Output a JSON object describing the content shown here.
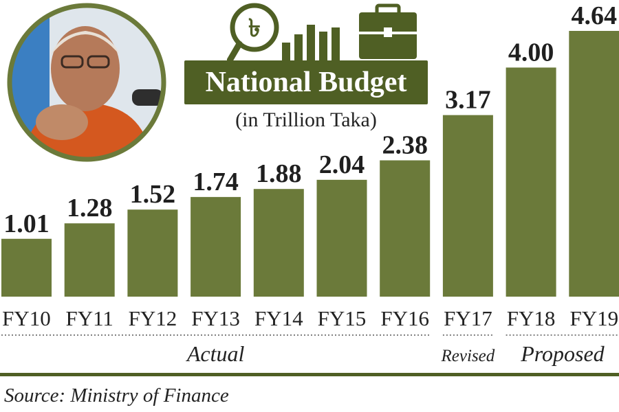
{
  "title": "National Budget",
  "subtitle": "(in Trillion Taka)",
  "source": "Source: Ministry of Finance",
  "colors": {
    "bar": "#6b7a3a",
    "accent": "#4f5f24"
  },
  "icons": [
    "taka-icon",
    "magnifier-icon",
    "bar-chart-icon",
    "briefcase-icon",
    "portrait-photo"
  ],
  "chart_data": {
    "type": "bar",
    "title": "National Budget",
    "subtitle": "(in Trillion Taka)",
    "categories": [
      "FY10",
      "FY11",
      "FY12",
      "FY13",
      "FY14",
      "FY15",
      "FY16",
      "FY17",
      "FY18",
      "FY19"
    ],
    "values": [
      1.01,
      1.28,
      1.52,
      1.74,
      1.88,
      2.04,
      2.38,
      3.17,
      4.0,
      4.64
    ],
    "value_labels": [
      "1.01",
      "1.28",
      "1.52",
      "1.74",
      "1.88",
      "2.04",
      "2.38",
      "3.17",
      "4.00",
      "4.64"
    ],
    "groups": [
      {
        "label": "Actual",
        "from": 0,
        "to": 6
      },
      {
        "label": "Revised",
        "from": 7,
        "to": 7
      },
      {
        "label": "Proposed",
        "from": 8,
        "to": 9
      }
    ],
    "ylim": [
      0,
      5
    ],
    "grid": false,
    "legend": "none"
  }
}
